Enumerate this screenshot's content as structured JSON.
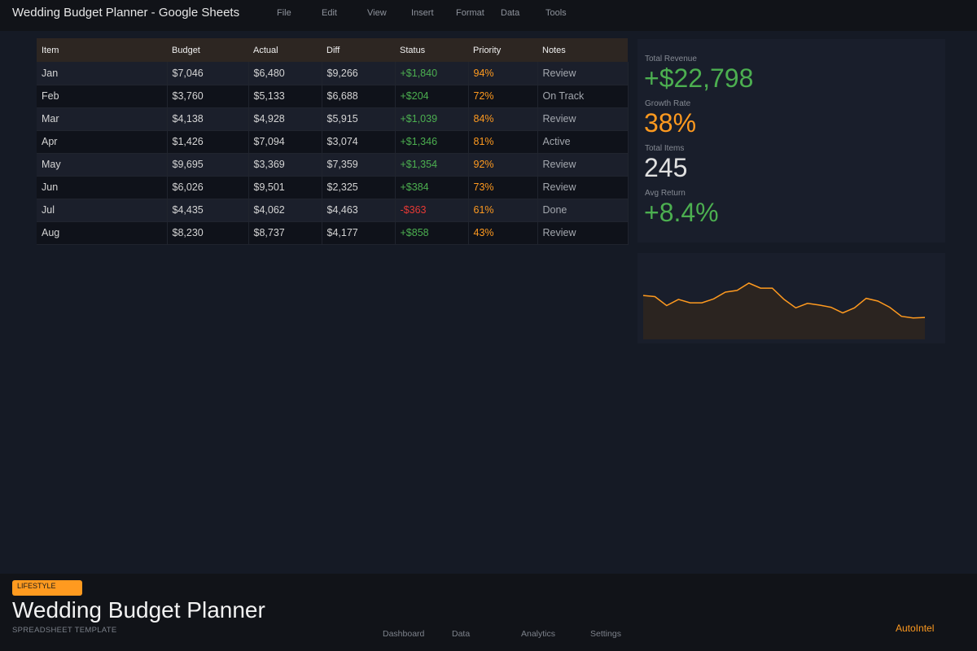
{
  "window": {
    "title": "Wedding Budget Planner - Google Sheets"
  },
  "menu": [
    "File",
    "Edit",
    "View",
    "Insert",
    "Format",
    "Data",
    "Tools"
  ],
  "table": {
    "headers": [
      "Item",
      "Budget",
      "Actual",
      "Diff",
      "Status",
      "Priority",
      "Notes"
    ],
    "rows": [
      [
        "Jan",
        "$7,046",
        "$6,480",
        "$9,266",
        "+$1,840",
        "94%",
        "Review"
      ],
      [
        "Feb",
        "$3,760",
        "$5,133",
        "$6,688",
        "+$204",
        "72%",
        "On Track"
      ],
      [
        "Mar",
        "$4,138",
        "$4,928",
        "$5,915",
        "+$1,039",
        "84%",
        "Review"
      ],
      [
        "Apr",
        "$1,426",
        "$7,094",
        "$3,074",
        "+$1,346",
        "81%",
        "Active"
      ],
      [
        "May",
        "$9,695",
        "$3,369",
        "$7,359",
        "+$1,354",
        "92%",
        "Review"
      ],
      [
        "Jun",
        "$6,026",
        "$9,501",
        "$2,325",
        "+$384",
        "73%",
        "Review"
      ],
      [
        "Jul",
        "$4,435",
        "$4,062",
        "$4,463",
        "-$363",
        "61%",
        "Done"
      ],
      [
        "Aug",
        "$8,230",
        "$8,737",
        "$4,177",
        "+$858",
        "43%",
        "Review"
      ]
    ]
  },
  "stats": [
    {
      "label": "Total Revenue",
      "value": "+$22,798",
      "color": "#4caf50"
    },
    {
      "label": "Growth Rate",
      "value": "38%",
      "color": "#ff9a1f"
    },
    {
      "label": "Total Items",
      "value": "245",
      "color": "#e0e0e0"
    },
    {
      "label": "Avg Return",
      "value": "+8.4%",
      "color": "#4caf50"
    }
  ],
  "chart_data": {
    "type": "area",
    "values": [
      78,
      76,
      60,
      71,
      65,
      65,
      72,
      84,
      87,
      100,
      91,
      91,
      71,
      56,
      64,
      61,
      57,
      47,
      56,
      73,
      68,
      57,
      41,
      38,
      39
    ],
    "ylim": [
      0,
      110
    ],
    "grid": false,
    "line_color": "#ff9a1f",
    "fill_color": "#2b2420"
  },
  "footer": {
    "badge": "LIFESTYLE",
    "title": "Wedding Budget Planner",
    "subtitle": "SPREADSHEET TEMPLATE",
    "nav": [
      "Dashboard",
      "Data",
      "Analytics",
      "Settings"
    ],
    "brand": "AutoIntel"
  },
  "colors": {
    "accent": "#ff9a1f",
    "positive": "#4caf50",
    "negative": "#e53935",
    "background": "#151a25"
  }
}
